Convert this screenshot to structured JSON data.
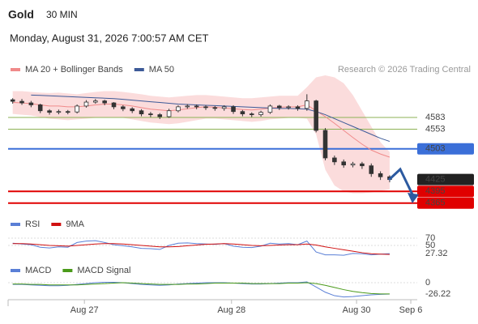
{
  "header": {
    "title": "Gold",
    "timeframe": "30 MIN",
    "datetime": "Monday, August 31, 2026 7:00:57 AM CET",
    "source": "Research © 2026 Trading Central"
  },
  "chart_data": [
    {
      "type": "candlestick",
      "xlim": [
        -0.5,
        44
      ],
      "ylim": [
        4346,
        4686
      ],
      "up_color": "#ffffff",
      "down_color": "#333333",
      "outline_color": "#333333",
      "open": [
        4628,
        4624,
        4620,
        4615,
        4600,
        4596,
        4598,
        4597,
        4612,
        4622,
        4625,
        4620,
        4610,
        4605,
        4600,
        4592,
        4590,
        4585,
        4600,
        4610,
        4612,
        4610,
        4608,
        4606,
        4610,
        4598,
        4592,
        4590,
        4596,
        4612,
        4608,
        4610,
        4606,
        4625,
        4550,
        4480,
        4470,
        4462,
        4465,
        4460,
        4440,
        4432
      ],
      "high": [
        4632,
        4630,
        4625,
        4618,
        4604,
        4603,
        4602,
        4616,
        4627,
        4630,
        4628,
        4622,
        4614,
        4609,
        4604,
        4597,
        4594,
        4605,
        4614,
        4617,
        4616,
        4614,
        4612,
        4614,
        4614,
        4602,
        4596,
        4600,
        4616,
        4615,
        4614,
        4614,
        4642,
        4628,
        4556,
        4486,
        4476,
        4470,
        4470,
        4466,
        4446,
        4436
      ],
      "low": [
        4618,
        4615,
        4609,
        4594,
        4590,
        4591,
        4591,
        4593,
        4608,
        4618,
        4614,
        4604,
        4599,
        4594,
        4586,
        4584,
        4579,
        4582,
        4596,
        4605,
        4604,
        4602,
        4600,
        4600,
        4592,
        4586,
        4584,
        4585,
        4592,
        4602,
        4603,
        4600,
        4600,
        4545,
        4474,
        4462,
        4455,
        4456,
        4452,
        4432,
        4424,
        4418
      ],
      "close": [
        4624,
        4620,
        4615,
        4600,
        4596,
        4598,
        4597,
        4612,
        4622,
        4625,
        4620,
        4610,
        4605,
        4600,
        4592,
        4590,
        4585,
        4600,
        4610,
        4612,
        4610,
        4608,
        4606,
        4610,
        4598,
        4592,
        4590,
        4596,
        4612,
        4608,
        4610,
        4606,
        4625,
        4550,
        4480,
        4470,
        4462,
        4465,
        4460,
        4440,
        4432,
        4425
      ],
      "series": [
        {
          "name": "MA 20 + Bollinger Bands",
          "color": "#f08a8a",
          "band_color": "#fbdcdc",
          "values": [
            4621,
            4620,
            4618,
            4615,
            4612,
            4612,
            4610,
            4610,
            4612,
            4615,
            4617,
            4617,
            4615,
            4612,
            4608,
            4604,
            4602,
            4600,
            4602,
            4605,
            4608,
            4610,
            4609,
            4607,
            4605,
            4603,
            4602,
            4604,
            4607,
            4609,
            4610,
            4610,
            4615,
            4600,
            4585,
            4568,
            4550,
            4532,
            4515,
            4500,
            4490,
            4482
          ],
          "upper": [
            4650,
            4650,
            4648,
            4646,
            4645,
            4646,
            4644,
            4642,
            4645,
            4648,
            4650,
            4650,
            4648,
            4645,
            4642,
            4638,
            4636,
            4634,
            4636,
            4638,
            4640,
            4640,
            4638,
            4636,
            4634,
            4632,
            4632,
            4634,
            4636,
            4638,
            4638,
            4638,
            4660,
            4685,
            4690,
            4685,
            4670,
            4640,
            4600,
            4560,
            4520,
            4495
          ],
          "lower": [
            4592,
            4590,
            4588,
            4584,
            4580,
            4578,
            4576,
            4578,
            4580,
            4582,
            4584,
            4584,
            4582,
            4578,
            4574,
            4570,
            4568,
            4566,
            4568,
            4572,
            4576,
            4580,
            4580,
            4578,
            4576,
            4574,
            4572,
            4574,
            4578,
            4580,
            4582,
            4582,
            4580,
            4540,
            4450,
            4410,
            4395,
            4390,
            4390,
            4392,
            4396,
            4400
          ]
        },
        {
          "name": "MA 50",
          "color": "#3d5a98",
          "values": [
            null,
            null,
            4640,
            4639,
            4638,
            4637,
            4636,
            4635,
            4634,
            4633,
            4632,
            4631,
            4629,
            4627,
            4625,
            4623,
            4621,
            4619,
            4617,
            4616,
            4615,
            4614,
            4613,
            4612,
            4611,
            4610,
            4609,
            4608,
            4607,
            4606,
            4606,
            4605,
            4604,
            4598,
            4590,
            4580,
            4570,
            4560,
            4550,
            4540,
            4530,
            4522
          ]
        }
      ],
      "levels": [
        {
          "value": 4583,
          "color": "#8db255",
          "line": true,
          "box": false
        },
        {
          "value": 4553,
          "color": "#8db255",
          "line": true,
          "box": false
        },
        {
          "value": 4503,
          "color": "#3b6fd8",
          "line": true,
          "box": true
        },
        {
          "value": 4425,
          "color": "#222222",
          "line": false,
          "box": true
        },
        {
          "value": 4395,
          "color": "#e00000",
          "line": true,
          "box": true
        },
        {
          "value": 4365,
          "color": "#e00000",
          "line": true,
          "box": true
        }
      ]
    },
    {
      "type": "line",
      "xlim": [
        -0.5,
        44
      ],
      "ylim": [
        12,
        79
      ],
      "yticks": [
        70,
        50
      ],
      "last_value": 27.32,
      "last_color": "#5a7fd6",
      "series": [
        {
          "name": "RSI",
          "color": "#5a7fd6",
          "values": [
            56,
            54,
            52,
            45,
            43,
            46,
            45,
            58,
            62,
            63,
            58,
            52,
            49,
            46,
            42,
            41,
            39,
            50,
            56,
            57,
            55,
            54,
            53,
            55,
            48,
            45,
            44,
            48,
            56,
            54,
            55,
            52,
            62,
            32,
            24,
            24,
            23,
            28,
            27,
            24,
            26,
            27.32
          ]
        },
        {
          "name": "9MA",
          "color": "#d01010",
          "values": [
            55,
            55,
            54,
            52,
            50,
            49,
            48,
            50,
            52,
            54,
            55,
            55,
            54,
            52,
            50,
            48,
            46,
            46,
            47,
            49,
            51,
            53,
            54,
            55,
            54,
            52,
            50,
            49,
            50,
            51,
            52,
            52,
            54,
            51,
            46,
            42,
            38,
            34,
            30,
            27,
            26,
            25
          ]
        }
      ]
    },
    {
      "type": "line",
      "xlim": [
        -0.5,
        44
      ],
      "ylim": [
        -39.3,
        16.9
      ],
      "yticks": [
        0
      ],
      "last_value": -26.22,
      "last_color": "#5a7fd6",
      "xticks": [
        {
          "value": 7.8,
          "label": "Aug 27"
        },
        {
          "value": 23.8,
          "label": "Aug 28"
        },
        {
          "value": 37.4,
          "label": "Aug 30"
        },
        {
          "value": 43.3,
          "label": "Sep 6"
        }
      ],
      "series": [
        {
          "name": "MACD",
          "color": "#5a7fd6",
          "values": [
            -4,
            -4,
            -5,
            -6,
            -7,
            -7,
            -6,
            -4,
            -2,
            0,
            1,
            1,
            0,
            -2,
            -4,
            -5,
            -6,
            -5,
            -3,
            -2,
            -1,
            0,
            0,
            0,
            -1,
            -2,
            -3,
            -3,
            -2,
            -1,
            0,
            0,
            2,
            -10,
            -22,
            -30,
            -33,
            -32,
            -30,
            -28,
            -27,
            -26.22
          ]
        },
        {
          "name": "MACD Signal",
          "color": "#4a9a1a",
          "values": [
            -3,
            -3,
            -4,
            -4,
            -5,
            -5,
            -5,
            -5,
            -4,
            -3,
            -2,
            -1,
            0,
            -1,
            -2,
            -3,
            -4,
            -4,
            -4,
            -3,
            -3,
            -2,
            -1,
            -1,
            -1,
            -1,
            -2,
            -2,
            -2,
            -2,
            -1,
            -1,
            0,
            -2,
            -6,
            -11,
            -16,
            -20,
            -23,
            -25,
            -26,
            -26
          ]
        }
      ]
    }
  ]
}
